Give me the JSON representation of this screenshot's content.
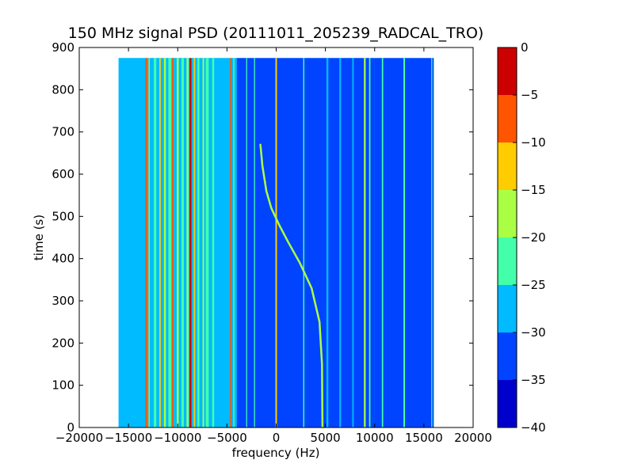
{
  "chart_data": {
    "type": "heatmap",
    "title": "150 MHz signal PSD (20111011_205239_RADCAL_TRO)",
    "xlabel": "frequency (Hz)",
    "ylabel": "time (s)",
    "xlim": [
      -20000,
      20000
    ],
    "ylim": [
      0,
      900
    ],
    "xticks": [
      -20000,
      -15000,
      -10000,
      -5000,
      0,
      5000,
      10000,
      15000,
      20000
    ],
    "xtick_labels": [
      "−20000",
      "−15000",
      "−10000",
      "−5000",
      "0",
      "5000",
      "10000",
      "15000",
      "20000"
    ],
    "yticks": [
      0,
      100,
      200,
      300,
      400,
      500,
      600,
      700,
      800,
      900
    ],
    "ytick_labels": [
      "0",
      "100",
      "200",
      "300",
      "400",
      "500",
      "600",
      "700",
      "800",
      "900"
    ],
    "data_extent": {
      "x": [
        -16000,
        16000
      ],
      "y": [
        0,
        875
      ]
    },
    "colorbar": {
      "levels": [
        -40,
        -35,
        -30,
        -25,
        -20,
        -15,
        -10,
        -5,
        0
      ],
      "tick_labels": [
        "−40",
        "−35",
        "−30",
        "−25",
        "−20",
        "−15",
        "−10",
        "−5",
        "0"
      ],
      "colors": [
        "#0000cc",
        "#0044ff",
        "#00bbff",
        "#44ffaa",
        "#aaff44",
        "#ffcc00",
        "#ff5500",
        "#cc0000"
      ]
    },
    "background_level": -27.5,
    "bands": [
      {
        "x0": -16000,
        "x1": -13500,
        "level": -27.5
      },
      {
        "x0": -13500,
        "x1": -4000,
        "level": -27.5
      },
      {
        "x0": -4000,
        "x1": 3000,
        "level": -30.5
      },
      {
        "x0": 3000,
        "x1": 9000,
        "level": -34
      },
      {
        "x0": 9000,
        "x1": 10000,
        "level": -30.5
      },
      {
        "x0": 10000,
        "x1": 12800,
        "level": -34
      },
      {
        "x0": 12800,
        "x1": 16000,
        "level": -30.5
      }
    ],
    "lines": [
      {
        "x": -13200,
        "level": -7.5,
        "width": 180
      },
      {
        "x": -12900,
        "level": -12.5,
        "width": 120
      },
      {
        "x": -12300,
        "level": -22.5,
        "width": 250
      },
      {
        "x": -11800,
        "level": -12.5,
        "width": 150
      },
      {
        "x": -11300,
        "level": -17.5,
        "width": 200
      },
      {
        "x": -10800,
        "level": -22.5,
        "width": 300
      },
      {
        "x": -10500,
        "level": -7.5,
        "width": 150
      },
      {
        "x": -10000,
        "level": -17.5,
        "width": 200
      },
      {
        "x": -9500,
        "level": -22.5,
        "width": 250
      },
      {
        "x": -9000,
        "level": -17.5,
        "width": 200
      },
      {
        "x": -8700,
        "level": -2.5,
        "width": 180
      },
      {
        "x": -8300,
        "level": -12.5,
        "width": 150
      },
      {
        "x": -7900,
        "level": -22.5,
        "width": 200
      },
      {
        "x": -7400,
        "level": -17.5,
        "width": 150
      },
      {
        "x": -7000,
        "level": -22.5,
        "width": 300
      },
      {
        "x": -6400,
        "level": -22.5,
        "width": 200
      },
      {
        "x": -4600,
        "level": -7.5,
        "width": 160
      },
      {
        "x": -4300,
        "level": -22.5,
        "width": 120
      },
      {
        "x": -3000,
        "level": -22.5,
        "width": 100
      },
      {
        "x": -2200,
        "level": -22.5,
        "width": 100
      },
      {
        "x": 0,
        "level": -12.5,
        "width": 160
      },
      {
        "x": 2800,
        "level": -22.5,
        "width": 120
      },
      {
        "x": 5200,
        "level": -27.5,
        "width": 200
      },
      {
        "x": 6500,
        "level": -27.5,
        "width": 180
      },
      {
        "x": 7800,
        "level": -27.5,
        "width": 150
      },
      {
        "x": 9000,
        "level": -17.5,
        "width": 180
      },
      {
        "x": 9500,
        "level": -22.5,
        "width": 140
      },
      {
        "x": 10800,
        "level": -22.5,
        "width": 140
      },
      {
        "x": 13000,
        "level": -22.5,
        "width": 160
      },
      {
        "x": 15800,
        "level": -22.5,
        "width": 100
      }
    ],
    "drift_track": {
      "level": -17.5,
      "points": [
        [
          4700,
          0
        ],
        [
          4650,
          150
        ],
        [
          4400,
          250
        ],
        [
          3600,
          330
        ],
        [
          2400,
          390
        ],
        [
          1200,
          440
        ],
        [
          300,
          480
        ],
        [
          -500,
          520
        ],
        [
          -1000,
          560
        ],
        [
          -1400,
          620
        ],
        [
          -1600,
          670
        ]
      ]
    }
  }
}
